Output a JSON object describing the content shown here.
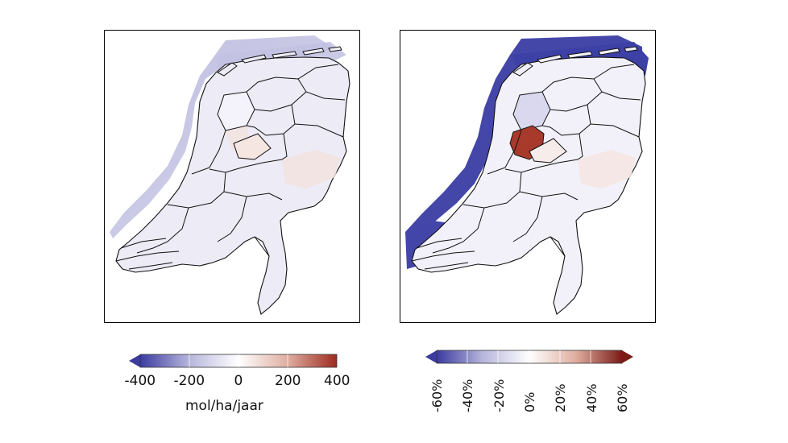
{
  "maps": [
    {
      "name": "absolute-difference",
      "colorbar": {
        "ticks": [
          "-400",
          "-200",
          "0",
          "200",
          "400"
        ],
        "range": [
          -400,
          400
        ],
        "unit": "mol/ha/jaar",
        "colors": [
          "#3b3ba0",
          "#b7b6dc",
          "#ffffff",
          "#dfaea0",
          "#9e2a20"
        ]
      }
    },
    {
      "name": "relative-difference",
      "colorbar": {
        "ticks": [
          "-60%",
          "-40%",
          "-20%",
          "0%",
          "20%",
          "40%",
          "60%"
        ],
        "range": [
          -60,
          60
        ],
        "colors": [
          "#3b3ba0",
          "#b7b6dc",
          "#ffffff",
          "#dfaea0",
          "#7a1c16"
        ]
      }
    }
  ]
}
